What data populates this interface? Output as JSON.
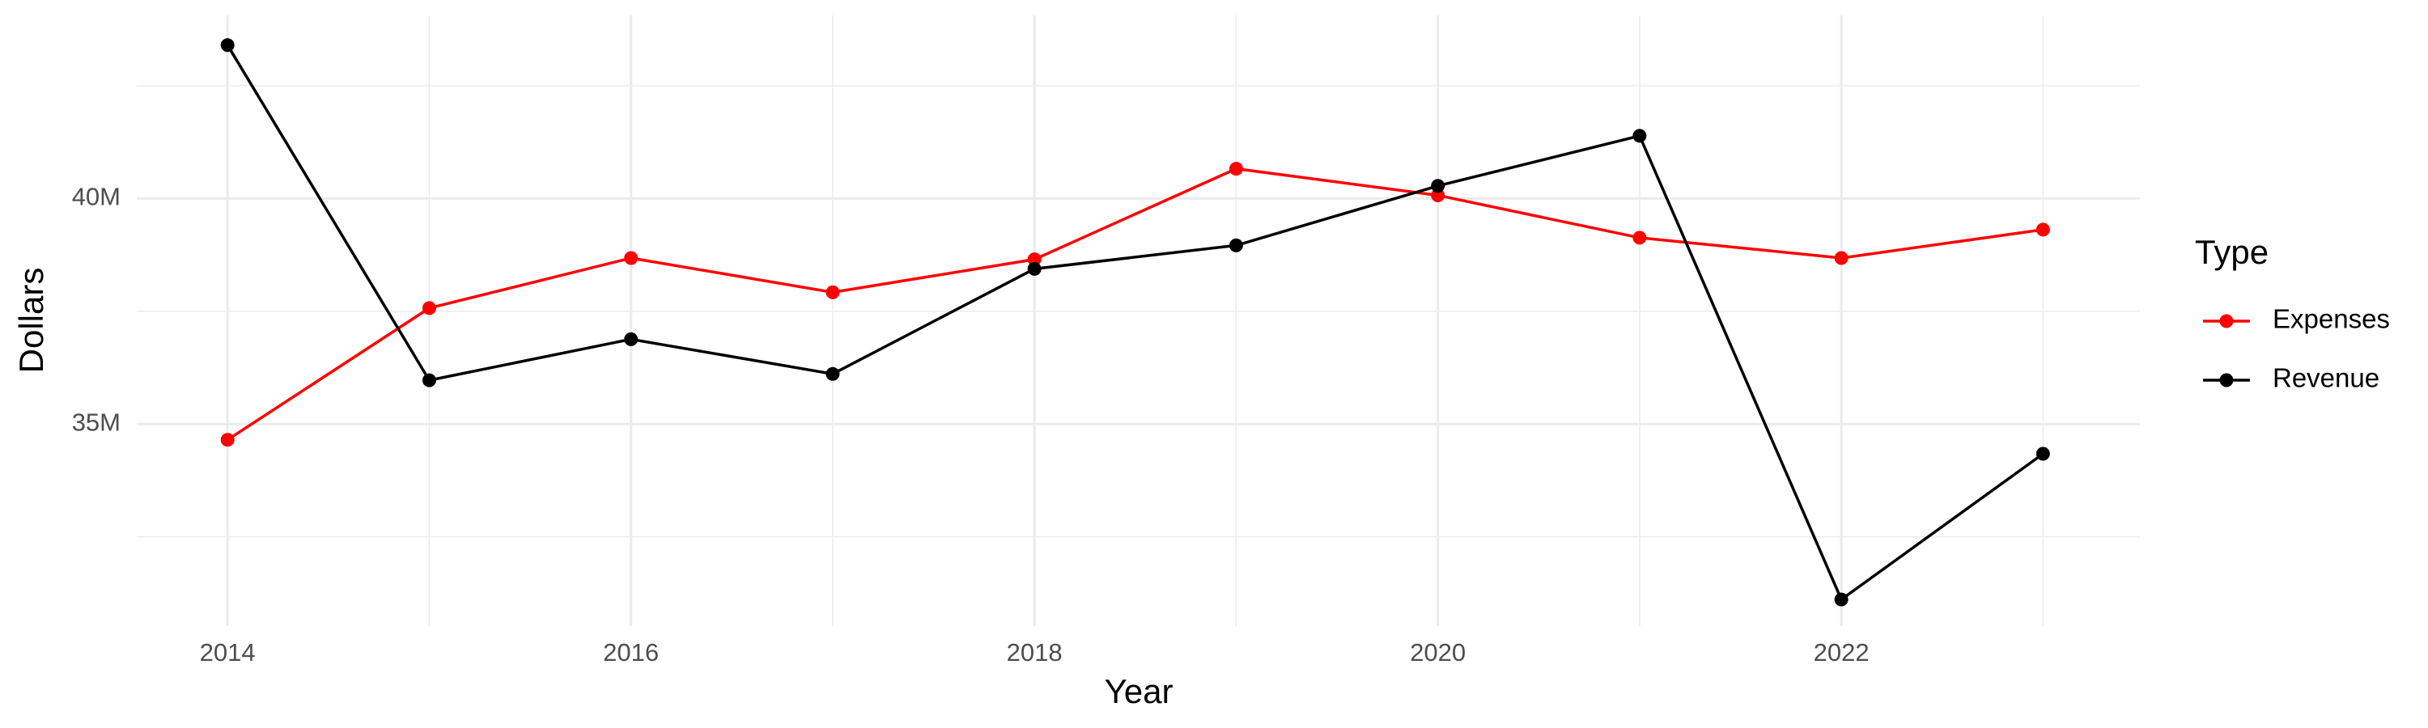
{
  "chart_data": {
    "type": "line",
    "x_label": "Year",
    "y_label": "Dollars",
    "legend_title": "Type",
    "x": [
      2014,
      2015,
      2016,
      2017,
      2018,
      2019,
      2020,
      2021,
      2022,
      2023
    ],
    "series": [
      {
        "name": "Expenses",
        "color": "#ff0000",
        "values": [
          34650000,
          37570000,
          38680000,
          37920000,
          38650000,
          40660000,
          40070000,
          39130000,
          38680000,
          39310000
        ]
      },
      {
        "name": "Revenue",
        "color": "#000000",
        "values": [
          43400000,
          35970000,
          36880000,
          36110000,
          38440000,
          38960000,
          40280000,
          41390000,
          31110000,
          34340000
        ]
      }
    ],
    "xlim": [
      2013.55,
      2023.48
    ],
    "xticks": [
      2014,
      2016,
      2018,
      2020,
      2022
    ],
    "ylim": [
      30520000,
      44060000
    ],
    "yticks": [
      {
        "value": 35000000,
        "label": "35M"
      },
      {
        "value": 40000000,
        "label": "40M"
      }
    ],
    "grid": true,
    "legend": "right"
  }
}
